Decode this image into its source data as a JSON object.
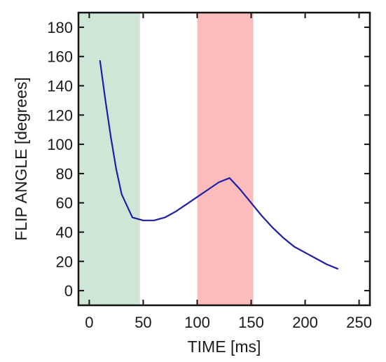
{
  "chart_data": {
    "type": "line",
    "title": "",
    "xlabel": "TIME [ms]",
    "ylabel": "FLIP ANGLE [degrees]",
    "xlim": [
      -10,
      260
    ],
    "ylim": [
      -10,
      190
    ],
    "x_ticks": [
      0,
      50,
      100,
      150,
      200,
      250
    ],
    "y_ticks": [
      0,
      20,
      40,
      60,
      80,
      100,
      120,
      140,
      160,
      180
    ],
    "x_tick_labels": [
      "0",
      "50",
      "100",
      "150",
      "200",
      "250"
    ],
    "y_tick_labels": [
      "0",
      "20",
      "40",
      "60",
      "80",
      "100",
      "120",
      "140",
      "160",
      "180"
    ],
    "grid": false,
    "legend": "none",
    "shaded_regions": [
      {
        "x_start": -10,
        "x_end": 47,
        "color": "#cfe5d6"
      },
      {
        "x_start": 100,
        "x_end": 152,
        "color": "#fcbcbc"
      }
    ],
    "series": [
      {
        "color": "#1f1fa3",
        "x": [
          10,
          15,
          20,
          25,
          30,
          35,
          40,
          50,
          60,
          70,
          80,
          90,
          100,
          110,
          120,
          130,
          140,
          150,
          160,
          170,
          180,
          190,
          200,
          210,
          220,
          230
        ],
        "values": [
          157,
          130,
          105,
          83,
          66,
          58,
          50,
          48,
          48,
          50,
          54,
          59,
          64,
          69,
          74,
          77,
          69,
          60,
          51,
          43,
          36,
          30,
          26,
          22,
          18,
          15
        ]
      }
    ]
  }
}
